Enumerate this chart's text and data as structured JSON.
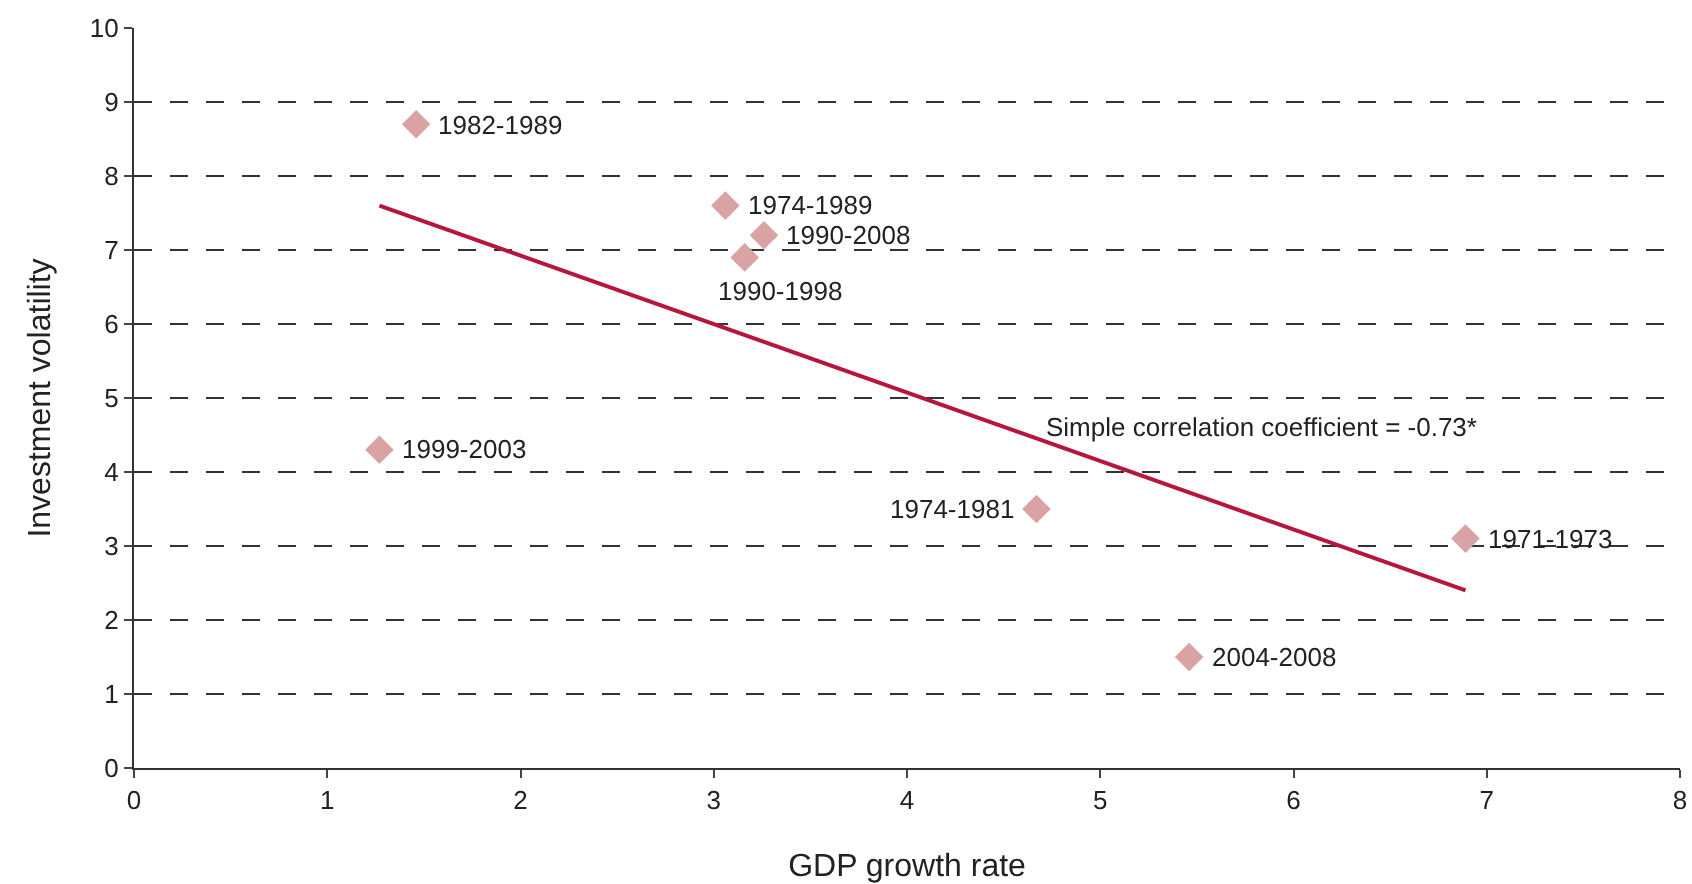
{
  "chart_data": {
    "type": "scatter",
    "xlabel": "GDP growth rate",
    "ylabel": "Investment volatility",
    "xlim": [
      0,
      8
    ],
    "xticks": [
      0,
      1,
      2,
      3,
      4,
      5,
      6,
      7,
      8
    ],
    "ylim": [
      0,
      10
    ],
    "yticks": [
      0,
      1,
      2,
      3,
      4,
      5,
      6,
      7,
      8,
      9,
      10
    ],
    "grid": "y",
    "series": [
      {
        "marker": "diamond",
        "color": "#d9a3a3",
        "x": [
          1.46,
          3.06,
          3.26,
          3.16,
          1.27,
          4.67,
          6.89,
          5.46
        ],
        "values": [
          8.7,
          7.6,
          7.2,
          6.9,
          4.3,
          3.5,
          3.1,
          1.5
        ]
      },
      {
        "type": "line",
        "color": "#b5163c",
        "x": [
          1.27,
          6.89
        ],
        "values": [
          7.6,
          2.4
        ]
      }
    ],
    "annotations": [
      {
        "text": "1982-1989",
        "x": 1.46,
        "y": 8.7
      },
      {
        "text": "1974-1989",
        "x": 3.06,
        "y": 7.6
      },
      {
        "text": "1990-2008",
        "x": 3.26,
        "y": 7.2
      },
      {
        "text": "1990-1998",
        "x": 3.16,
        "y": 6.9
      },
      {
        "text": "1999-2003",
        "x": 1.27,
        "y": 4.3
      },
      {
        "text": "1974-1981",
        "x": 4.67,
        "y": 3.5
      },
      {
        "text": "1971-1973",
        "x": 6.89,
        "y": 3.1
      },
      {
        "text": "2004-2008",
        "x": 5.46,
        "y": 1.5
      },
      "Simple correlation coefficient = -0.73*"
    ]
  }
}
